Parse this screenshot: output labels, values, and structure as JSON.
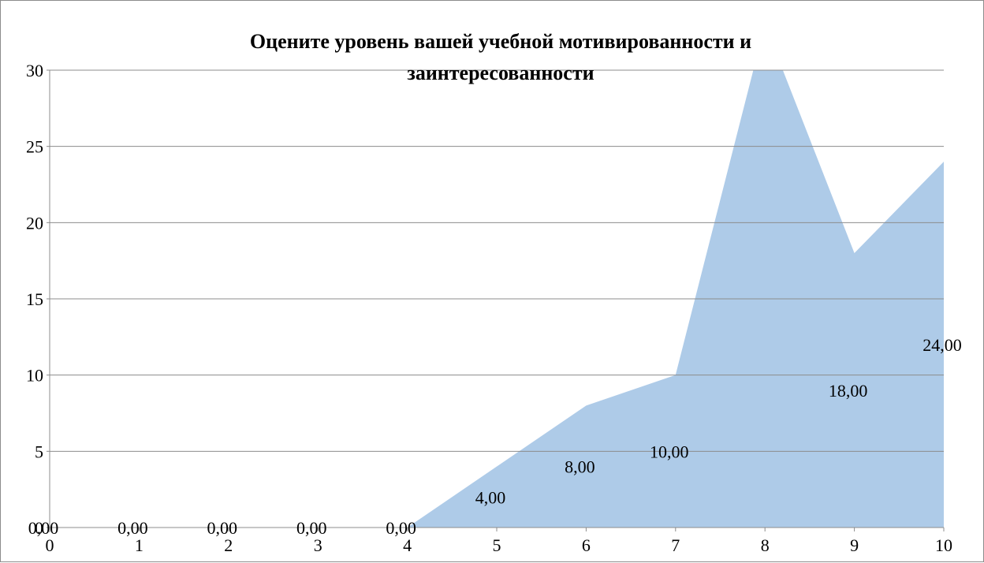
{
  "chart_data": {
    "type": "area",
    "title_lines": [
      "Оцените уровень вашей учебной мотивированности  и",
      "заинтересованности"
    ],
    "x": [
      0,
      1,
      2,
      3,
      4,
      5,
      6,
      7,
      8,
      9,
      10
    ],
    "values": [
      0,
      0,
      0,
      0,
      0,
      4,
      8,
      10,
      33,
      18,
      24
    ],
    "data_labels": [
      "0,00",
      "0,00",
      "0,00",
      "0,00",
      "0,00",
      "4,00",
      "8,00",
      "10,00",
      "",
      "18,00",
      "24,00"
    ],
    "xlabel": "",
    "ylabel": "",
    "ylim": [
      0,
      30
    ],
    "yticks": [
      0,
      5,
      10,
      15,
      20,
      25,
      30
    ],
    "ytick_labels": [
      "0",
      "5",
      "10",
      "15",
      "20",
      "25",
      "30"
    ],
    "xtick_labels": [
      "0",
      "1",
      "2",
      "3",
      "4",
      "5",
      "6",
      "7",
      "8",
      "9",
      "10"
    ],
    "grid": true,
    "legend": "none",
    "colors": {
      "area": "#aecbe8",
      "grid": "#8c8c8c",
      "axis": "#8c8c8c"
    }
  }
}
